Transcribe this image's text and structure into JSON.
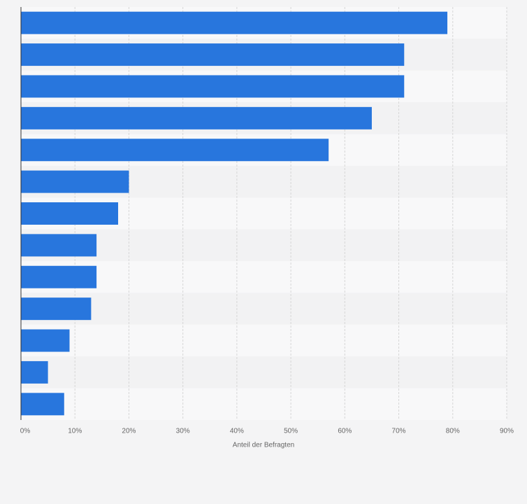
{
  "chart_data": {
    "type": "barh",
    "categories": [
      null,
      null,
      null,
      null,
      null,
      null,
      null,
      null,
      null,
      null,
      null,
      null,
      null
    ],
    "values": [
      79,
      71,
      71,
      65,
      57,
      20,
      18,
      14,
      14,
      13,
      9,
      5,
      8
    ],
    "color": "#2876dd",
    "xlabel": "Anteil der Befragten",
    "xlim": [
      0,
      90
    ],
    "xticks": [
      {
        "value": 0,
        "label": "0%"
      },
      {
        "value": 10,
        "label": "10%"
      },
      {
        "value": 20,
        "label": "20%"
      },
      {
        "value": 30,
        "label": "30%"
      },
      {
        "value": 40,
        "label": "40%"
      },
      {
        "value": 50,
        "label": "50%"
      },
      {
        "value": 60,
        "label": "60%"
      },
      {
        "value": 70,
        "label": "70%"
      },
      {
        "value": 80,
        "label": "80%"
      },
      {
        "value": 90,
        "label": "90%"
      }
    ],
    "grid": true
  }
}
